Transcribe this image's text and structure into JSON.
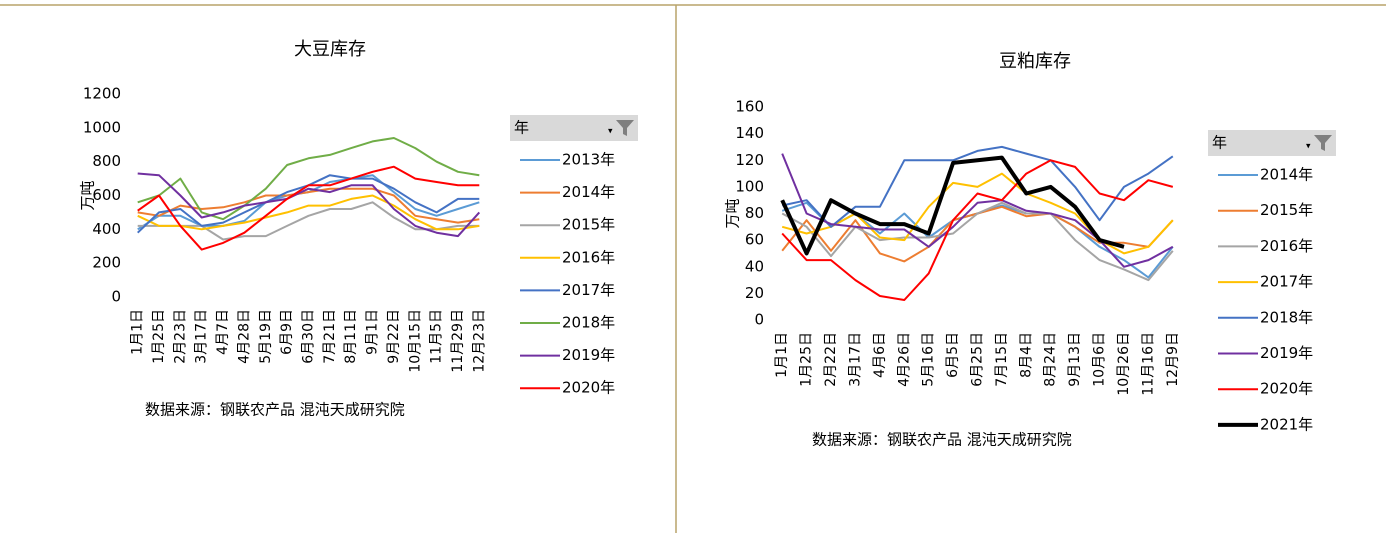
{
  "chart_data": [
    {
      "type": "line",
      "title": "大豆库存",
      "y_label": "万吨",
      "source": "数据来源：钢联农产品 混沌天成研究院",
      "legend_title": "年",
      "categories": [
        "1月1日",
        "1月25日",
        "2月23日",
        "3月17日",
        "4月7日",
        "4月28日",
        "5月19日",
        "6月9日",
        "6月30日",
        "7月21日",
        "8月11日",
        "9月1日",
        "9月22日",
        "10月15日",
        "11月5日",
        "11月29日",
        "12月23日"
      ],
      "ylim": [
        0,
        1200
      ],
      "yticks": [
        0,
        200,
        400,
        600,
        800,
        1000,
        1200
      ],
      "series": [
        {
          "name": "2013年",
          "color": "#5b9bd5",
          "values": [
            400,
            480,
            480,
            420,
            420,
            450,
            560,
            600,
            620,
            680,
            700,
            720,
            620,
            520,
            480,
            520,
            560
          ]
        },
        {
          "name": "2014年",
          "color": "#ed7d31",
          "values": [
            500,
            480,
            540,
            520,
            530,
            560,
            600,
            600,
            620,
            640,
            640,
            640,
            600,
            480,
            460,
            440,
            460
          ]
        },
        {
          "name": "2015年",
          "color": "#a5a5a5",
          "values": [
            420,
            420,
            420,
            420,
            340,
            360,
            360,
            420,
            480,
            520,
            520,
            560,
            470,
            400,
            400,
            420,
            420
          ]
        },
        {
          "name": "2016年",
          "color": "#ffc000",
          "values": [
            480,
            420,
            420,
            400,
            420,
            440,
            470,
            500,
            540,
            540,
            580,
            600,
            540,
            460,
            400,
            400,
            420
          ]
        },
        {
          "name": "2017年",
          "color": "#4472c4",
          "values": [
            380,
            500,
            520,
            420,
            440,
            500,
            560,
            620,
            660,
            720,
            700,
            700,
            640,
            560,
            500,
            580,
            580
          ]
        },
        {
          "name": "2018年",
          "color": "#70ad47",
          "values": [
            560,
            600,
            700,
            500,
            460,
            540,
            640,
            780,
            820,
            840,
            880,
            920,
            940,
            880,
            800,
            740,
            720
          ]
        },
        {
          "name": "2019年",
          "color": "#7030a0",
          "values": [
            730,
            720,
            600,
            470,
            500,
            540,
            560,
            580,
            640,
            620,
            660,
            660,
            520,
            420,
            380,
            360,
            500
          ]
        },
        {
          "name": "2020年",
          "color": "#ff0000",
          "values": [
            510,
            600,
            420,
            280,
            320,
            380,
            480,
            580,
            660,
            660,
            700,
            740,
            770,
            700,
            680,
            660,
            660
          ]
        }
      ]
    },
    {
      "type": "line",
      "title": "豆粕库存",
      "y_label": "万吨",
      "source": "数据来源：钢联农产品 混沌天成研究院",
      "legend_title": "年",
      "categories": [
        "1月1日",
        "1月25日",
        "2月22日",
        "3月17日",
        "4月6日",
        "4月26日",
        "5月16日",
        "6月5日",
        "6月25日",
        "7月15日",
        "8月4日",
        "8月24日",
        "9月13日",
        "10月6日",
        "10月26日",
        "11月16日",
        "12月9日"
      ],
      "ylim": [
        0,
        160
      ],
      "yticks": [
        0,
        20,
        40,
        60,
        80,
        100,
        120,
        140,
        160
      ],
      "series": [
        {
          "name": "2014年",
          "color": "#5b9bd5",
          "values": [
            82,
            88,
            70,
            80,
            65,
            80,
            62,
            75,
            80,
            86,
            80,
            80,
            70,
            55,
            45,
            32,
            55
          ]
        },
        {
          "name": "2015年",
          "color": "#ed7d31",
          "values": [
            52,
            75,
            52,
            75,
            50,
            44,
            55,
            75,
            80,
            85,
            78,
            80,
            70,
            58,
            58,
            55,
            75
          ]
        },
        {
          "name": "2016年",
          "color": "#a5a5a5",
          "values": [
            80,
            70,
            48,
            70,
            60,
            62,
            62,
            65,
            80,
            88,
            80,
            80,
            60,
            45,
            38,
            30,
            52
          ]
        },
        {
          "name": "2017年",
          "color": "#ffc000",
          "values": [
            70,
            65,
            70,
            80,
            62,
            60,
            85,
            103,
            100,
            110,
            95,
            88,
            80,
            60,
            50,
            55,
            75
          ]
        },
        {
          "name": "2018年",
          "color": "#4472c4",
          "values": [
            86,
            90,
            70,
            85,
            85,
            120,
            120,
            120,
            127,
            130,
            125,
            120,
            100,
            75,
            100,
            110,
            123
          ]
        },
        {
          "name": "2019年",
          "color": "#7030a0",
          "values": [
            125,
            80,
            72,
            70,
            68,
            68,
            55,
            70,
            88,
            90,
            82,
            80,
            75,
            60,
            40,
            45,
            55
          ]
        },
        {
          "name": "2020年",
          "color": "#ff0000",
          "values": [
            65,
            45,
            45,
            30,
            18,
            15,
            35,
            75,
            95,
            90,
            110,
            120,
            115,
            95,
            90,
            105,
            100
          ]
        },
        {
          "name": "2021年",
          "color": "#000000",
          "values": [
            90,
            50,
            90,
            80,
            72,
            72,
            65,
            118,
            120,
            122,
            95,
            100,
            85,
            60,
            55,
            null,
            null
          ]
        }
      ]
    }
  ]
}
